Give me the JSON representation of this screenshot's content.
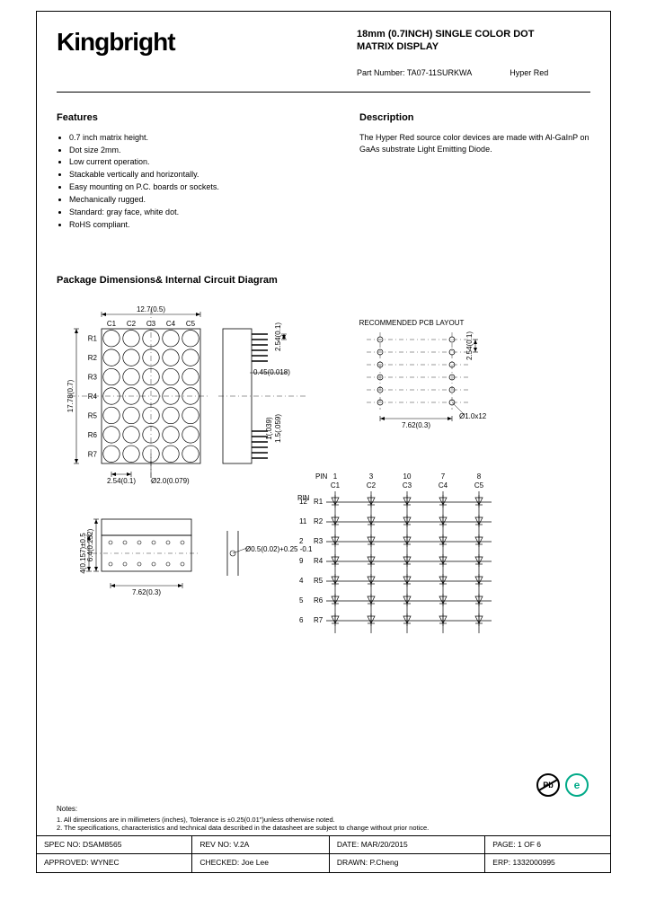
{
  "brand": "Kingbright",
  "title_line1": "18mm (0.7INCH) SINGLE COLOR DOT",
  "title_line2": "MATRIX DISPLAY",
  "part_label": "Part Number: TA07-11SURKWA",
  "part_color": "Hyper Red",
  "features_heading": "Features",
  "features": [
    "0.7 inch matrix height.",
    "Dot size 2mm.",
    "Low current operation.",
    "Stackable vertically and horizontally.",
    "Easy mounting on P.C. boards or sockets.",
    "Mechanically rugged.",
    "Standard: gray face, white dot.",
    "RoHS compliant."
  ],
  "description_heading": "Description",
  "description": "The Hyper Red source color devices are made with Al-GaInP on GaAs substrate Light Emitting Diode.",
  "pkg_heading": "Package Dimensions& Internal Circuit Diagram",
  "diagram": {
    "matrix": {
      "width_label": "12.7(0.5)",
      "height_label": "17.78(0.7)",
      "columns": [
        "C1",
        "C2",
        "C3",
        "C4",
        "C5"
      ],
      "rows": [
        "R1",
        "R2",
        "R3",
        "R4",
        "R5",
        "R6",
        "R7"
      ],
      "dot_dia_label": "Ø2.0(0.079)",
      "pitch_label": "2.54(0.1)"
    },
    "side": {
      "pin_w": "0.45(0.018)",
      "pitch_v": "2.54(0.1)",
      "d1": "1(.039)",
      "d2": "1.5(.059)"
    },
    "pcb": {
      "title": "RECOMMENDED PCB LAYOUT",
      "w": "7.62(0.3)",
      "h": "2.54(0.1)",
      "hole": "Ø1.0x12"
    },
    "bottom": {
      "h": "4(0.157)±0.5",
      "t": "6.4(0.252)",
      "w": "7.62(0.3)",
      "pin": "Ø0.5(0.02)+0.25 -0.1"
    },
    "circuit": {
      "col_pins": [
        "1",
        "3",
        "10",
        "7",
        "8"
      ],
      "col_lbls": [
        "C1",
        "C2",
        "C3",
        "C4",
        "C5"
      ],
      "row_pins": [
        "12",
        "11",
        "2",
        "9",
        "4",
        "5",
        "6"
      ],
      "row_lbls": [
        "R1",
        "R2",
        "R3",
        "R4",
        "R5",
        "R6",
        "R7"
      ],
      "pin_label": "PIN"
    }
  },
  "badges": {
    "pb": "Pb"
  },
  "notes_heading": "Notes:",
  "notes": [
    "1. All dimensions are in millimeters (inches), Tolerance is ±0.25(0.01\")unless otherwise noted.",
    "2. The specifications, characteristics and technical data described in the datasheet are subject to change without prior notice."
  ],
  "footer": {
    "spec_no_l": "SPEC NO:",
    "spec_no_v": "DSAM8565",
    "rev_l": "REV NO:",
    "rev_v": "V.2A",
    "date_l": "DATE:",
    "date_v": "MAR/20/2015",
    "page_l": "PAGE:",
    "page_v": "1 OF 6",
    "appr_l": "APPROVED:",
    "appr_v": "WYNEC",
    "chk_l": "CHECKED:",
    "chk_v": "Joe Lee",
    "drawn_l": "DRAWN:",
    "drawn_v": "P.Cheng",
    "erp_l": "ERP:",
    "erp_v": "1332000995"
  }
}
